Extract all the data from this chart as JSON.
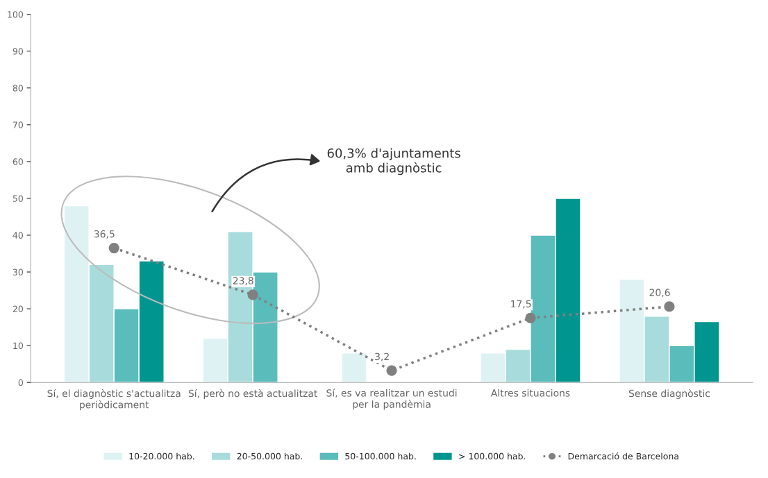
{
  "chart_data": {
    "type": "bar",
    "categories": [
      "Sí, el diagnòstic s'actualitza\nperiòdicament",
      "Sí, però no està actualitzat",
      "Sí, es va realitzar un estudi\nper la pandèmia",
      "Altres situacions",
      "Sense diagnòstic"
    ],
    "series": [
      {
        "name": "10-20.000 hab.",
        "color": "#dff2f3",
        "values": [
          48,
          12,
          8,
          8,
          28
        ]
      },
      {
        "name": "20-50.000 hab.",
        "color": "#a8dcdc",
        "values": [
          32,
          41,
          null,
          9,
          18
        ]
      },
      {
        "name": "50-100.000 hab.",
        "color": "#5bbcbc",
        "values": [
          20,
          30,
          null,
          40,
          10
        ]
      },
      {
        "name": "> 100.000 hab.",
        "color": "#00968f",
        "values": [
          33,
          null,
          null,
          50,
          16.5
        ]
      },
      {
        "name": "Demarcació de Barcelona",
        "type": "line",
        "color": "#808080",
        "marker": "circle",
        "line_style": "dotted",
        "values": [
          36.5,
          23.8,
          3.2,
          17.5,
          20.6
        ],
        "value_labels": [
          "36,5",
          "23,8",
          "3,2",
          "17,5",
          "20,6"
        ]
      }
    ],
    "ylim": [
      0,
      100
    ],
    "yticks": [
      0,
      10,
      20,
      30,
      40,
      50,
      60,
      70,
      80,
      90,
      100
    ],
    "grid": false,
    "legend": "bottom",
    "annotations": [
      "60,3% d'ajuntaments\namb diagnòstic"
    ]
  }
}
